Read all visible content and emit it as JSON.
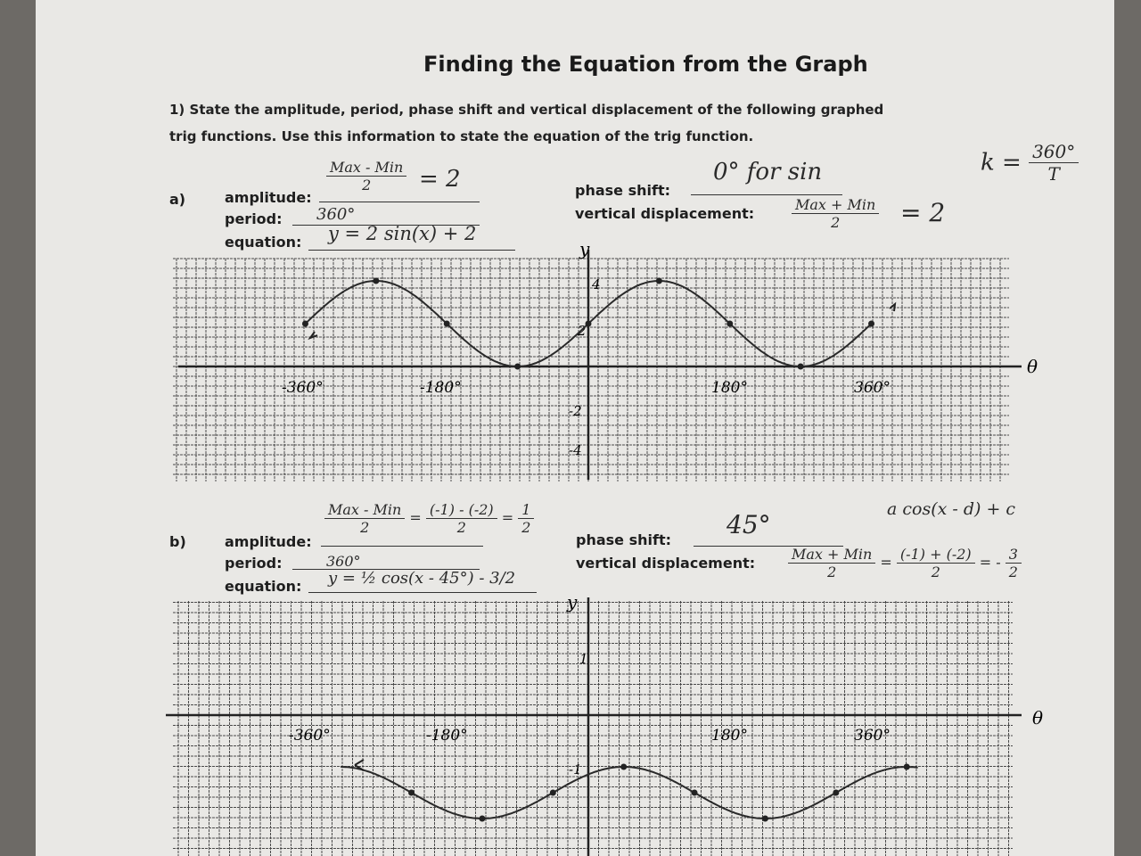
{
  "title": "Finding the Equation from the Graph",
  "instructions": {
    "line1": "1) State the amplitude, period, phase shift and vertical displacement of the following graphed",
    "line2": "trig functions. Use this information to state the equation of the trig function."
  },
  "margin_note": {
    "lhs": "k =",
    "num": "360°",
    "den": "T"
  },
  "labels": {
    "amplitude": "amplitude:",
    "period": "period:",
    "equation": "equation:",
    "phase_shift": "phase shift:",
    "vertical_displacement": "vertical displacement:"
  },
  "problem_a": {
    "marker": "a)",
    "amplitude_formula_num": "Max - Min",
    "amplitude_formula_den": "2",
    "amplitude_answer": "= 2",
    "period": "360°",
    "equation": "y = 2 sin(x) + 2",
    "phase_shift": "0°  for sin",
    "vd_formula_num": "Max + Min",
    "vd_formula_den": "2",
    "vd_answer": "= 2"
  },
  "problem_b": {
    "marker": "b)",
    "amplitude_num1": "Max - Min",
    "amplitude_den1": "2",
    "amplitude_eq": "=",
    "amplitude_num2": "(-1) - (-2)",
    "amplitude_den2": "2",
    "amplitude_eq2": "=",
    "amplitude_num3": "1",
    "amplitude_den3": "2",
    "period": "360°",
    "equation": "y = ½ cos(x - 45°) - 3/2",
    "phase_shift": "45°",
    "general_form": "a cos(x - d) + c",
    "vd_num1": "Max + Min",
    "vd_den1": "2",
    "vd_eq": "=",
    "vd_num2": "(-1) + (-2)",
    "vd_den2": "2",
    "vd_eq2": "= -",
    "vd_num3": "3",
    "vd_den3": "2"
  },
  "graph_a": {
    "y_axis_label": "y",
    "x_axis_label": "θ",
    "x_ticks": [
      "-360°",
      "-180°",
      "180°",
      "360°"
    ],
    "y_ticks": [
      "4",
      "2",
      "-2",
      "-4"
    ]
  },
  "graph_b": {
    "y_axis_label": "y",
    "x_axis_label": "θ",
    "x_ticks": [
      "-360°",
      "-180°",
      "180°",
      "360°"
    ],
    "y_ticks": [
      "1",
      "-1"
    ]
  }
}
